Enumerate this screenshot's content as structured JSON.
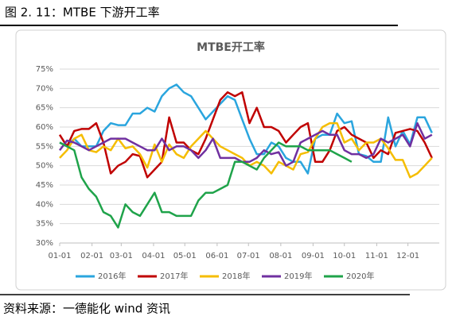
{
  "header": {
    "title": "图 2. 11：MTBE 下游开工率"
  },
  "chart_data": {
    "type": "line",
    "title": "MTBE开工率",
    "x": [
      0,
      1,
      2,
      3,
      4,
      5,
      6,
      7,
      8,
      9,
      10,
      11,
      12,
      13,
      14,
      15,
      16,
      17,
      18,
      19,
      20,
      21,
      22,
      23,
      24,
      25,
      26,
      27,
      28,
      29,
      30,
      31,
      32,
      33,
      34,
      35,
      36,
      37,
      38,
      39,
      40,
      41,
      42,
      43,
      44,
      45,
      46,
      47,
      48,
      49,
      50,
      51
    ],
    "xlim": [
      0,
      52
    ],
    "xticks": [
      {
        "value": 0,
        "label": "01-01"
      },
      {
        "value": 4.43,
        "label": "02-01"
      },
      {
        "value": 8.43,
        "label": "03-01"
      },
      {
        "value": 12.86,
        "label": "04-01"
      },
      {
        "value": 17.14,
        "label": "05-01"
      },
      {
        "value": 21.57,
        "label": "06-01"
      },
      {
        "value": 25.86,
        "label": "07-01"
      },
      {
        "value": 30.29,
        "label": "08-01"
      },
      {
        "value": 34.71,
        "label": "09-01"
      },
      {
        "value": 39,
        "label": "10-01"
      },
      {
        "value": 43.43,
        "label": "11-01"
      },
      {
        "value": 47.71,
        "label": "12-01"
      }
    ],
    "ylim": [
      30,
      75
    ],
    "yticks": [
      {
        "value": 30,
        "label": "30%"
      },
      {
        "value": 35,
        "label": "35%"
      },
      {
        "value": 40,
        "label": "40%"
      },
      {
        "value": 45,
        "label": "45%"
      },
      {
        "value": 50,
        "label": "50%"
      },
      {
        "value": 55,
        "label": "55%"
      },
      {
        "value": 60,
        "label": "60%"
      },
      {
        "value": 65,
        "label": "65%"
      },
      {
        "value": 70,
        "label": "70%"
      },
      {
        "value": 75,
        "label": "75%"
      }
    ],
    "grid": true,
    "legend": "bottom",
    "series": [
      {
        "name": "2016年",
        "color": "#2aa5de",
        "values": [
          56,
          55,
          57,
          55,
          55,
          55,
          59,
          61,
          60.5,
          60.5,
          63.5,
          63.5,
          65,
          64,
          68,
          70,
          71,
          69,
          68,
          65,
          62,
          64,
          66,
          68,
          67,
          62,
          57,
          53,
          53,
          56,
          55,
          52,
          51,
          51,
          48,
          57,
          58,
          58,
          63.5,
          61,
          61.5,
          53,
          52.5,
          51,
          51,
          62.5,
          55,
          59,
          55.5,
          62.5,
          62.5,
          58.5
        ]
      },
      {
        "name": "2017年",
        "color": "#c00000",
        "values": [
          58,
          55,
          59,
          59.5,
          59.5,
          61,
          56,
          48,
          50,
          51,
          53,
          52.5,
          47,
          49,
          51,
          62.5,
          56,
          56,
          54,
          53,
          57,
          62,
          67,
          69,
          68,
          69,
          61,
          65,
          60,
          60,
          59,
          56,
          58,
          60,
          61,
          51,
          51,
          54,
          59,
          60,
          58,
          57,
          56,
          52,
          54,
          53,
          58.5,
          59,
          59.5,
          59,
          56,
          52
        ]
      },
      {
        "name": "2018年",
        "color": "#f5bd00",
        "values": [
          52,
          54,
          57,
          58,
          54,
          53.5,
          55,
          54,
          57,
          54.5,
          55,
          53,
          49.5,
          55.5,
          51,
          55.5,
          53,
          52,
          55,
          57,
          59,
          57,
          55,
          54,
          53,
          52,
          50,
          51,
          50,
          48,
          51,
          50,
          49,
          53,
          53.5,
          57,
          60,
          61,
          61,
          56,
          57,
          54,
          56,
          56,
          57,
          54.5,
          51.5,
          51.5,
          47,
          48,
          50,
          52
        ]
      },
      {
        "name": "2019年",
        "color": "#7030a0",
        "values": [
          54,
          56.5,
          56,
          55,
          54,
          55,
          56,
          57,
          57,
          57,
          56,
          55,
          54,
          54,
          57,
          54,
          55,
          55,
          54,
          52,
          54,
          57,
          52,
          52,
          52,
          51,
          51,
          52,
          54,
          53,
          53.5,
          50,
          51,
          56,
          57,
          58,
          59,
          58,
          58,
          54,
          53,
          53,
          52,
          53,
          57,
          56,
          57,
          58,
          55,
          61,
          57,
          58
        ]
      },
      {
        "name": "2020年",
        "color": "#1fa34a",
        "values": [
          56,
          55,
          54,
          47,
          44,
          42,
          38,
          37,
          34,
          40,
          38,
          37,
          40,
          43,
          38,
          38,
          37,
          37,
          37,
          41,
          43,
          43,
          44,
          45,
          51,
          51,
          50,
          49,
          52,
          54,
          56,
          55,
          55,
          55,
          54,
          54,
          54,
          54,
          53,
          52,
          51,
          null,
          null,
          null,
          null,
          null,
          null,
          null,
          null,
          null,
          null,
          null
        ]
      }
    ]
  },
  "footer": {
    "source": "资料来源：一德能化  wind 资讯"
  }
}
